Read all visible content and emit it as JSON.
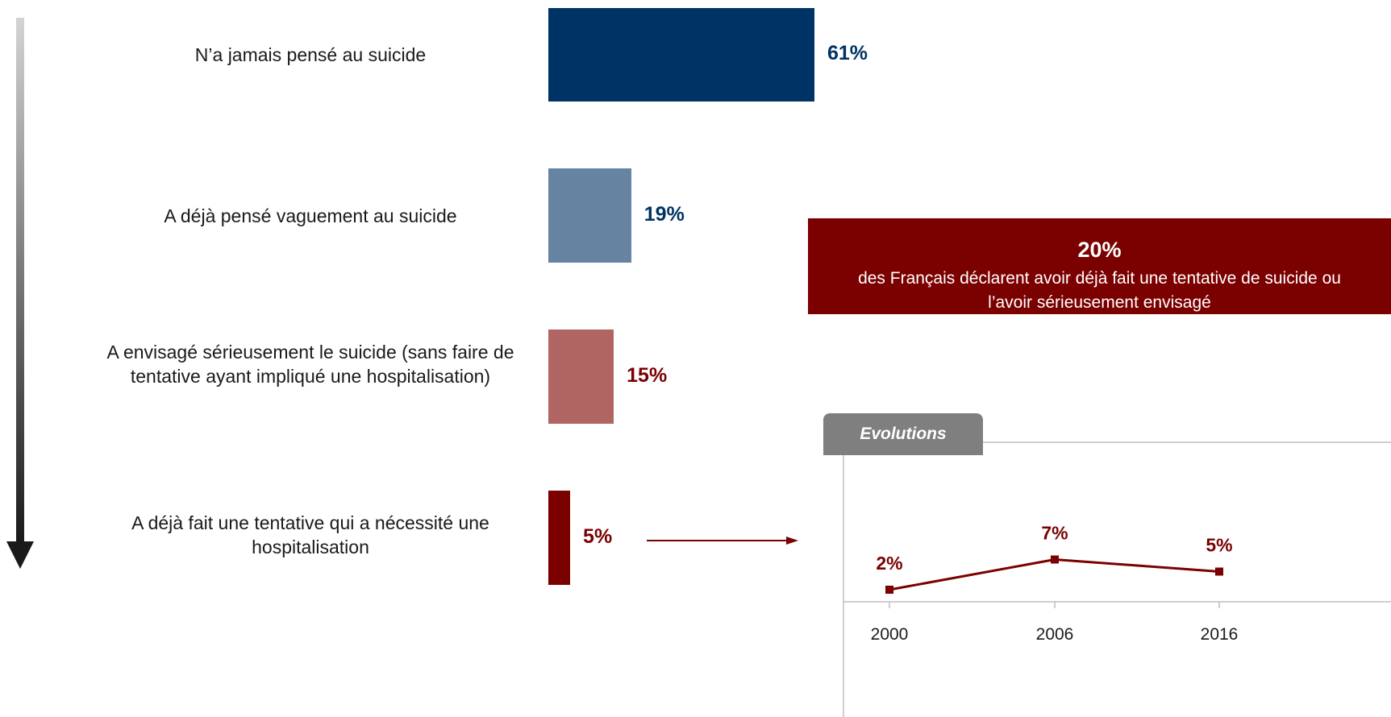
{
  "chart_data": [
    {
      "type": "bar",
      "orientation": "horizontal",
      "categories": [
        "N’a jamais pensé au suicide",
        "A déjà pensé vaguement au suicide",
        "A envisagé sérieusement le suicide (sans faire de tentative ayant impliqué une hospitalisation)",
        "A déjà fait une tentative qui a nécessité une hospitalisation"
      ],
      "values": [
        61,
        19,
        15,
        5
      ],
      "value_labels": [
        "61%",
        "19%",
        "15%",
        "5%"
      ],
      "colors": [
        "#003365",
        "#6683a2",
        "#b06563",
        "#7b0000"
      ],
      "label_colors": [
        "#003365",
        "#003365",
        "#7b0000",
        "#7b0000"
      ]
    },
    {
      "type": "line",
      "title": "Evolutions",
      "x": [
        "2000",
        "2006",
        "2016"
      ],
      "values": [
        2,
        7,
        5
      ],
      "value_labels": [
        "2%",
        "7%",
        "5%"
      ],
      "ylim": [
        0,
        10
      ],
      "color": "#7b0000"
    }
  ],
  "callout": {
    "value": "20%",
    "text": "des Français déclarent avoir déjà fait une tentative de suicide ou l’avoir sérieusement envisagé"
  }
}
